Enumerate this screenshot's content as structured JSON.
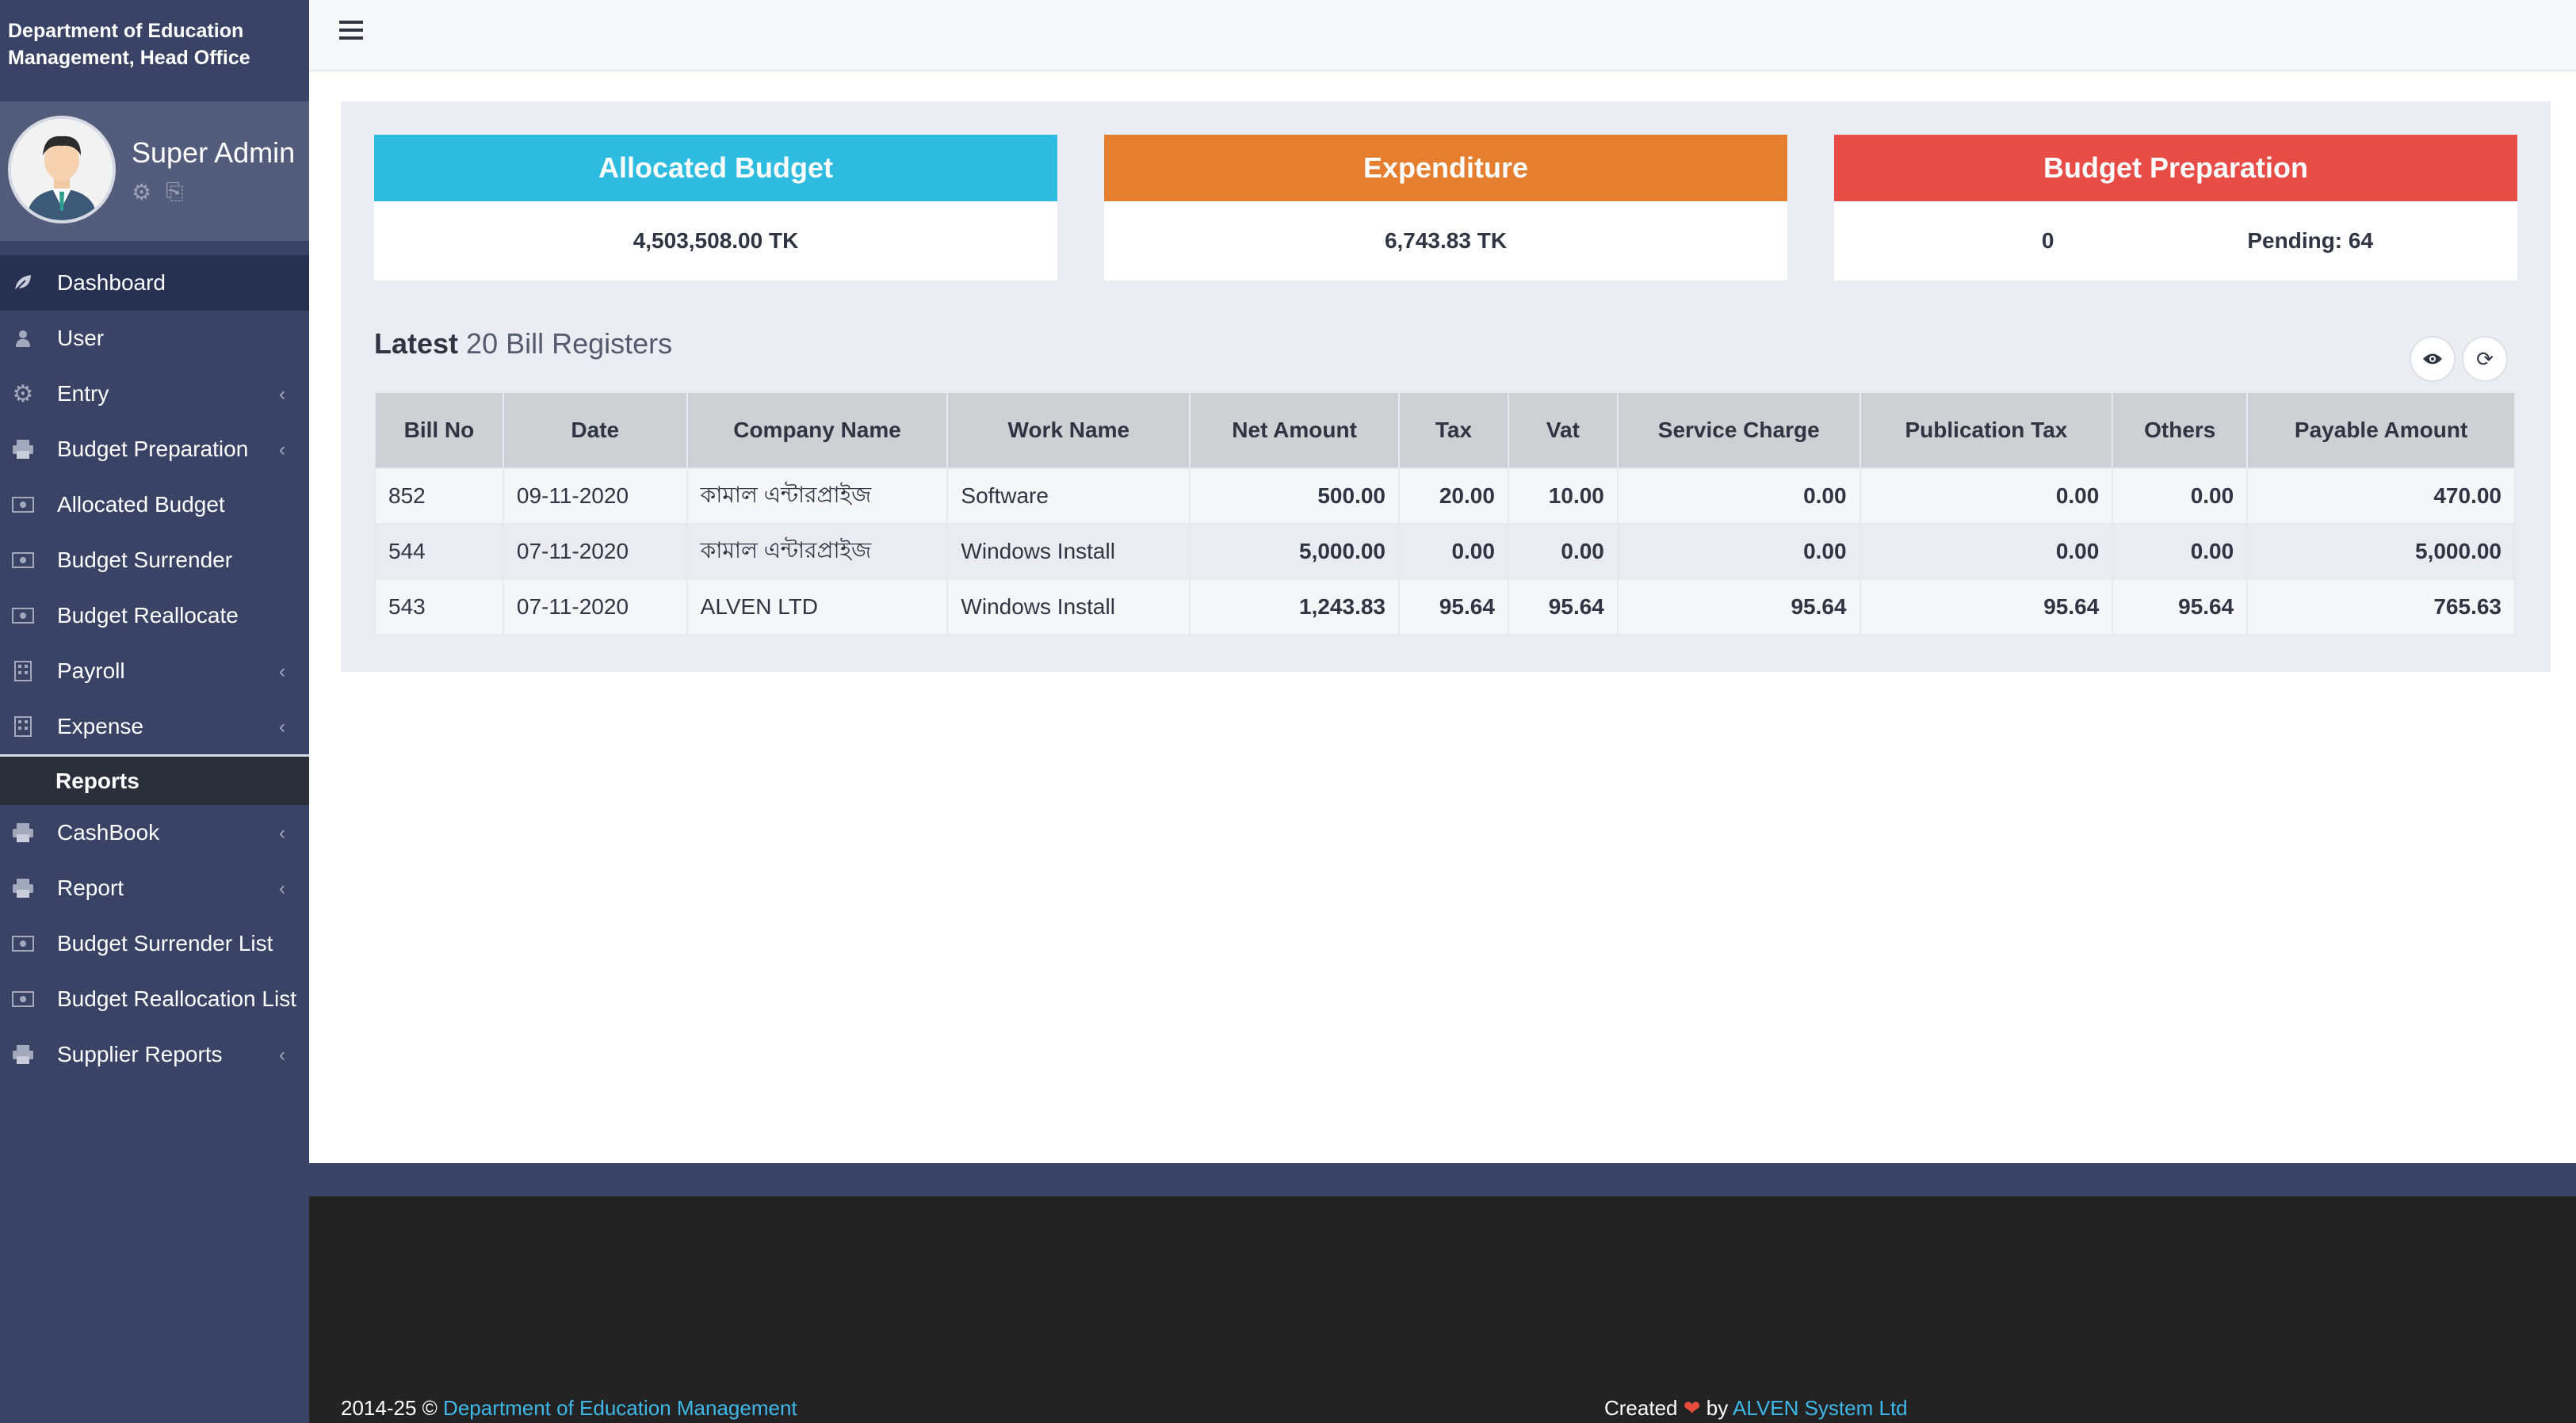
{
  "sidebar": {
    "brand": "Department of Education Management, Head Office",
    "profile": {
      "name": "Super Admin"
    },
    "items": [
      {
        "label": "Dashboard",
        "icon": "leaf-icon",
        "active": true,
        "has_children": false
      },
      {
        "label": "User",
        "icon": "user-icon",
        "has_children": false
      },
      {
        "label": "Entry",
        "icon": "gear-icon",
        "has_children": true
      },
      {
        "label": "Budget Preparation",
        "icon": "printer-icon",
        "has_children": true
      },
      {
        "label": "Allocated Budget",
        "icon": "money-icon",
        "has_children": false
      },
      {
        "label": "Budget Surrender",
        "icon": "money-icon",
        "has_children": false
      },
      {
        "label": "Budget Reallocate",
        "icon": "money-icon",
        "has_children": false
      },
      {
        "label": "Payroll",
        "icon": "building-icon",
        "has_children": true
      },
      {
        "label": "Expense",
        "icon": "building-icon",
        "has_children": true
      }
    ],
    "section_label": "Reports",
    "report_items": [
      {
        "label": "CashBook",
        "icon": "printer-icon",
        "has_children": true
      },
      {
        "label": "Report",
        "icon": "printer-icon",
        "has_children": true
      },
      {
        "label": "Budget Surrender List",
        "icon": "money-icon",
        "has_children": false
      },
      {
        "label": "Budget Reallocation List",
        "icon": "money-icon",
        "has_children": false
      },
      {
        "label": "Supplier Reports",
        "icon": "printer-icon",
        "has_children": true
      }
    ]
  },
  "cards": {
    "allocated": {
      "title": "Allocated Budget",
      "value": "4,503,508.00 TK",
      "color": "#2ebbe0"
    },
    "expenditure": {
      "title": "Expenditure",
      "value": "6,743.83 TK",
      "color": "#e67e30"
    },
    "preparation": {
      "title": "Budget Preparation",
      "value": "0",
      "pending": "Pending: 64",
      "color": "#e74c47"
    }
  },
  "latest": {
    "title_bold": "Latest",
    "title_rest": "20 Bill Registers",
    "columns": [
      "Bill No",
      "Date",
      "Company Name",
      "Work Name",
      "Net Amount",
      "Tax",
      "Vat",
      "Service Charge",
      "Publication Tax",
      "Others",
      "Payable Amount"
    ],
    "rows": [
      [
        "852",
        "09-11-2020",
        "কামাল এন্টারপ্রাইজ",
        "Software",
        "500.00",
        "20.00",
        "10.00",
        "0.00",
        "0.00",
        "0.00",
        "470.00"
      ],
      [
        "544",
        "07-11-2020",
        "কামাল এন্টারপ্রাইজ",
        "Windows Install",
        "5,000.00",
        "0.00",
        "0.00",
        "0.00",
        "0.00",
        "0.00",
        "5,000.00"
      ],
      [
        "543",
        "07-11-2020",
        "ALVEN LTD",
        "Windows Install",
        "1,243.83",
        "95.64",
        "95.64",
        "95.64",
        "95.64",
        "95.64",
        "765.63"
      ]
    ]
  },
  "footer": {
    "copyright": "2014-25 ©",
    "org_link": "Department of Education Management",
    "created": "Created",
    "by": "by",
    "company_link": "ALVEN System Ltd"
  }
}
